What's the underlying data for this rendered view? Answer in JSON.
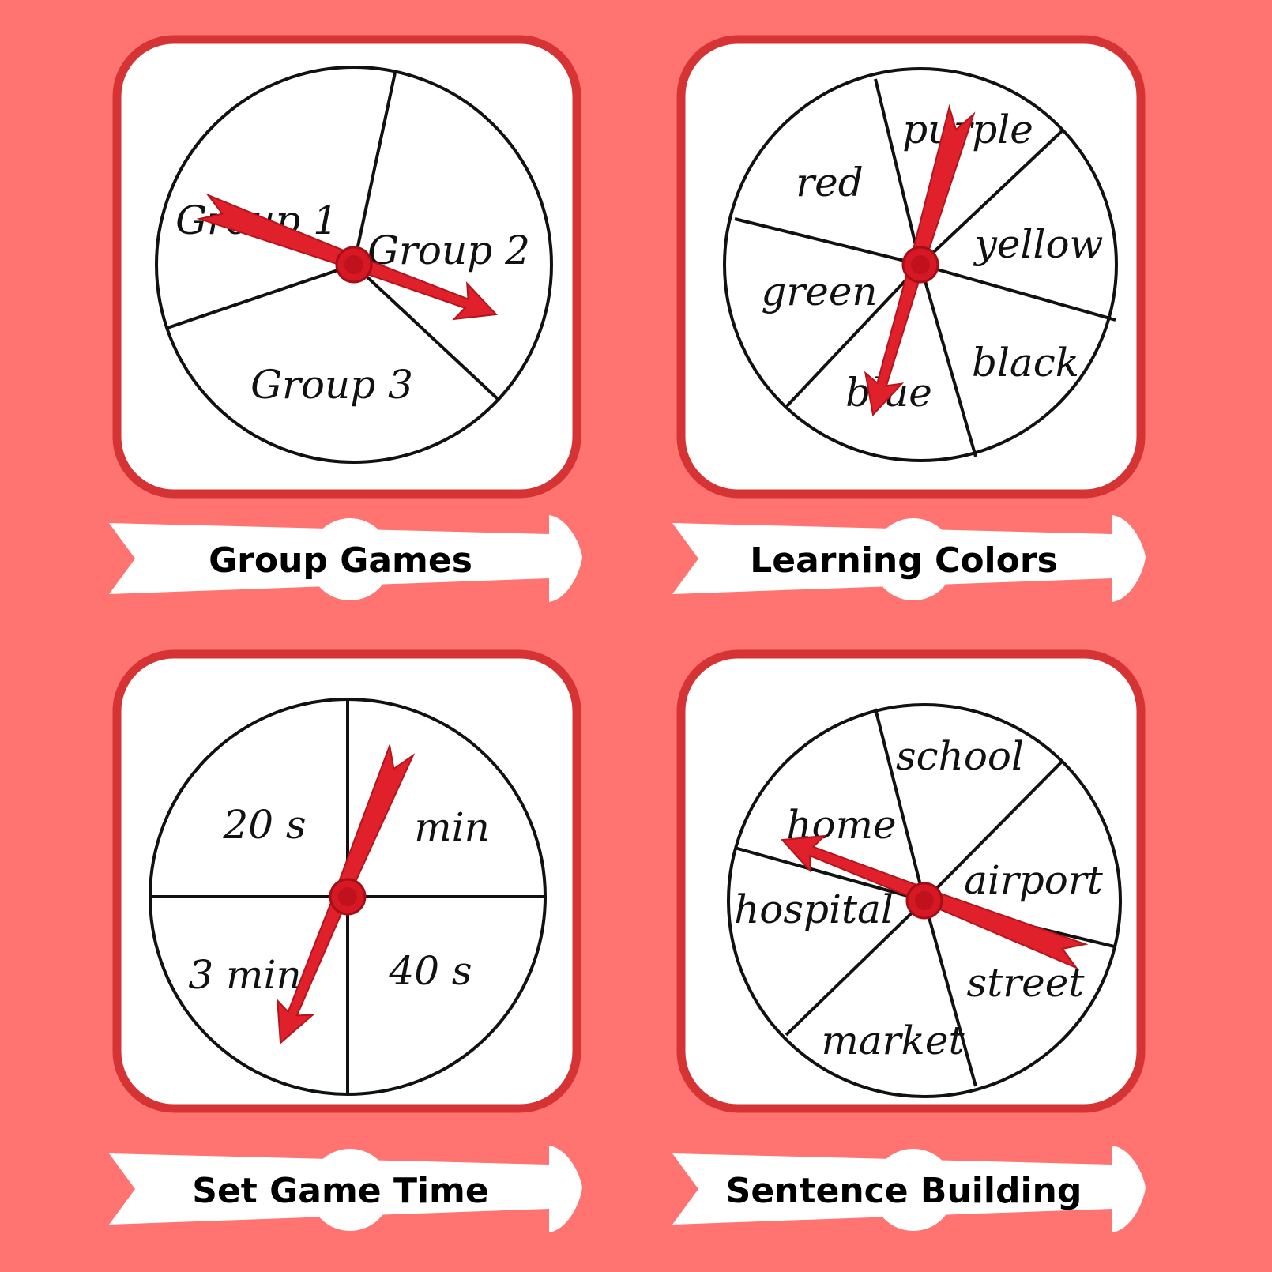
{
  "colors": {
    "background": "#FF7370",
    "card_border": "#D63434",
    "card_fill": "#FFFFFF",
    "pointer": "#E0202A",
    "banner": "#FFFFFF"
  },
  "spinners": [
    {
      "title": "Group Games",
      "segments": [
        "Group 1",
        "Group 2",
        "Group 3"
      ]
    },
    {
      "title": "Learning Colors",
      "segments": [
        "red",
        "purple",
        "yellow",
        "black",
        "blue",
        "green"
      ]
    },
    {
      "title": "Set Game Time",
      "segments": [
        "20 s",
        "min",
        "3 min",
        "40 s"
      ]
    },
    {
      "title": "Sentence Building",
      "segments": [
        "school",
        "airport",
        "street",
        "market",
        "hospital",
        "home"
      ]
    }
  ]
}
